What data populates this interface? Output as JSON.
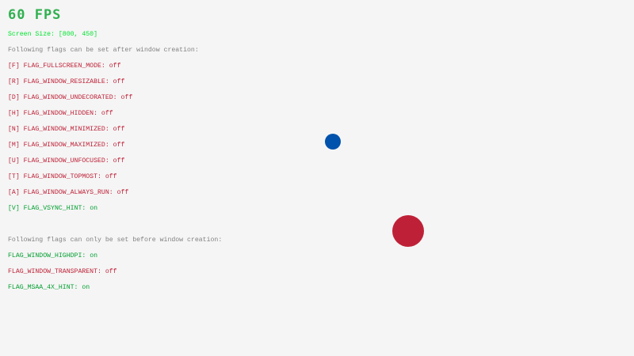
{
  "fps": "60 FPS",
  "screen_size": "Screen Size: [800, 450]",
  "colors": {
    "on": "#009e2f",
    "off": "#be2137",
    "info": "#828282",
    "size": "#00e430",
    "fps": "#30b050",
    "background": "#f5f5f5",
    "ball_small": "#0052ac",
    "ball_large": "#be2137"
  },
  "runtime_header": "Following flags can be set after window creation:",
  "runtime_flags": [
    {
      "label": "[F] FLAG_FULLSCREEN_MODE: ",
      "value": "off"
    },
    {
      "label": "[R] FLAG_WINDOW_RESIZABLE: ",
      "value": "off"
    },
    {
      "label": "[D] FLAG_WINDOW_UNDECORATED: ",
      "value": "off"
    },
    {
      "label": "[H] FLAG_WINDOW_HIDDEN: ",
      "value": "off"
    },
    {
      "label": "[N] FLAG_WINDOW_MINIMIZED: ",
      "value": "off"
    },
    {
      "label": "[M] FLAG_WINDOW_MAXIMIZED: ",
      "value": "off"
    },
    {
      "label": "[U] FLAG_WINDOW_UNFOCUSED: ",
      "value": "off"
    },
    {
      "label": "[T] FLAG_WINDOW_TOPMOST: ",
      "value": "off"
    },
    {
      "label": "[A] FLAG_WINDOW_ALWAYS_RUN: ",
      "value": "off"
    },
    {
      "label": "[V] FLAG_VSYNC_HINT: ",
      "value": "on"
    }
  ],
  "init_header": "Following flags can only be set before window creation:",
  "init_flags": [
    {
      "label": "FLAG_WINDOW_HIGHDPI: ",
      "value": "on"
    },
    {
      "label": "FLAG_WINDOW_TRANSPARENT: ",
      "value": "off"
    },
    {
      "label": "FLAG_MSAA_4X_HINT: ",
      "value": "on"
    }
  ]
}
